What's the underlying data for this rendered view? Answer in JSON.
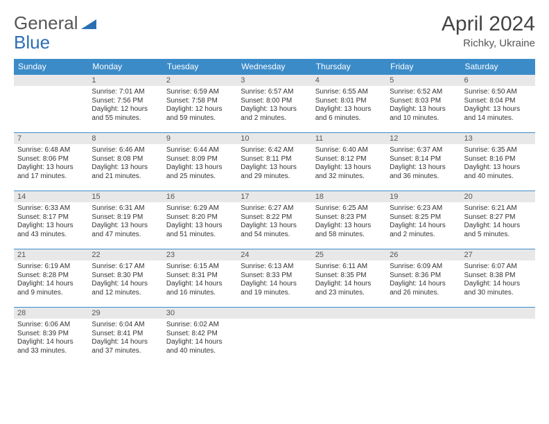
{
  "logo": {
    "text1": "General",
    "text2": "Blue"
  },
  "title": "April 2024",
  "location": "Richky, Ukraine",
  "colors": {
    "header_bg": "#3b8bc9",
    "header_fg": "#ffffff",
    "daynum_bg": "#e8e8e8",
    "border": "#3b8bc9",
    "text": "#333333"
  },
  "weekdays": [
    "Sunday",
    "Monday",
    "Tuesday",
    "Wednesday",
    "Thursday",
    "Friday",
    "Saturday"
  ],
  "weeks": [
    [
      {
        "blank": true
      },
      {
        "num": "1",
        "sunrise": "Sunrise: 7:01 AM",
        "sunset": "Sunset: 7:56 PM",
        "daylight": "Daylight: 12 hours and 55 minutes."
      },
      {
        "num": "2",
        "sunrise": "Sunrise: 6:59 AM",
        "sunset": "Sunset: 7:58 PM",
        "daylight": "Daylight: 12 hours and 59 minutes."
      },
      {
        "num": "3",
        "sunrise": "Sunrise: 6:57 AM",
        "sunset": "Sunset: 8:00 PM",
        "daylight": "Daylight: 13 hours and 2 minutes."
      },
      {
        "num": "4",
        "sunrise": "Sunrise: 6:55 AM",
        "sunset": "Sunset: 8:01 PM",
        "daylight": "Daylight: 13 hours and 6 minutes."
      },
      {
        "num": "5",
        "sunrise": "Sunrise: 6:52 AM",
        "sunset": "Sunset: 8:03 PM",
        "daylight": "Daylight: 13 hours and 10 minutes."
      },
      {
        "num": "6",
        "sunrise": "Sunrise: 6:50 AM",
        "sunset": "Sunset: 8:04 PM",
        "daylight": "Daylight: 13 hours and 14 minutes."
      }
    ],
    [
      {
        "num": "7",
        "sunrise": "Sunrise: 6:48 AM",
        "sunset": "Sunset: 8:06 PM",
        "daylight": "Daylight: 13 hours and 17 minutes."
      },
      {
        "num": "8",
        "sunrise": "Sunrise: 6:46 AM",
        "sunset": "Sunset: 8:08 PM",
        "daylight": "Daylight: 13 hours and 21 minutes."
      },
      {
        "num": "9",
        "sunrise": "Sunrise: 6:44 AM",
        "sunset": "Sunset: 8:09 PM",
        "daylight": "Daylight: 13 hours and 25 minutes."
      },
      {
        "num": "10",
        "sunrise": "Sunrise: 6:42 AM",
        "sunset": "Sunset: 8:11 PM",
        "daylight": "Daylight: 13 hours and 29 minutes."
      },
      {
        "num": "11",
        "sunrise": "Sunrise: 6:40 AM",
        "sunset": "Sunset: 8:12 PM",
        "daylight": "Daylight: 13 hours and 32 minutes."
      },
      {
        "num": "12",
        "sunrise": "Sunrise: 6:37 AM",
        "sunset": "Sunset: 8:14 PM",
        "daylight": "Daylight: 13 hours and 36 minutes."
      },
      {
        "num": "13",
        "sunrise": "Sunrise: 6:35 AM",
        "sunset": "Sunset: 8:16 PM",
        "daylight": "Daylight: 13 hours and 40 minutes."
      }
    ],
    [
      {
        "num": "14",
        "sunrise": "Sunrise: 6:33 AM",
        "sunset": "Sunset: 8:17 PM",
        "daylight": "Daylight: 13 hours and 43 minutes."
      },
      {
        "num": "15",
        "sunrise": "Sunrise: 6:31 AM",
        "sunset": "Sunset: 8:19 PM",
        "daylight": "Daylight: 13 hours and 47 minutes."
      },
      {
        "num": "16",
        "sunrise": "Sunrise: 6:29 AM",
        "sunset": "Sunset: 8:20 PM",
        "daylight": "Daylight: 13 hours and 51 minutes."
      },
      {
        "num": "17",
        "sunrise": "Sunrise: 6:27 AM",
        "sunset": "Sunset: 8:22 PM",
        "daylight": "Daylight: 13 hours and 54 minutes."
      },
      {
        "num": "18",
        "sunrise": "Sunrise: 6:25 AM",
        "sunset": "Sunset: 8:23 PM",
        "daylight": "Daylight: 13 hours and 58 minutes."
      },
      {
        "num": "19",
        "sunrise": "Sunrise: 6:23 AM",
        "sunset": "Sunset: 8:25 PM",
        "daylight": "Daylight: 14 hours and 2 minutes."
      },
      {
        "num": "20",
        "sunrise": "Sunrise: 6:21 AM",
        "sunset": "Sunset: 8:27 PM",
        "daylight": "Daylight: 14 hours and 5 minutes."
      }
    ],
    [
      {
        "num": "21",
        "sunrise": "Sunrise: 6:19 AM",
        "sunset": "Sunset: 8:28 PM",
        "daylight": "Daylight: 14 hours and 9 minutes."
      },
      {
        "num": "22",
        "sunrise": "Sunrise: 6:17 AM",
        "sunset": "Sunset: 8:30 PM",
        "daylight": "Daylight: 14 hours and 12 minutes."
      },
      {
        "num": "23",
        "sunrise": "Sunrise: 6:15 AM",
        "sunset": "Sunset: 8:31 PM",
        "daylight": "Daylight: 14 hours and 16 minutes."
      },
      {
        "num": "24",
        "sunrise": "Sunrise: 6:13 AM",
        "sunset": "Sunset: 8:33 PM",
        "daylight": "Daylight: 14 hours and 19 minutes."
      },
      {
        "num": "25",
        "sunrise": "Sunrise: 6:11 AM",
        "sunset": "Sunset: 8:35 PM",
        "daylight": "Daylight: 14 hours and 23 minutes."
      },
      {
        "num": "26",
        "sunrise": "Sunrise: 6:09 AM",
        "sunset": "Sunset: 8:36 PM",
        "daylight": "Daylight: 14 hours and 26 minutes."
      },
      {
        "num": "27",
        "sunrise": "Sunrise: 6:07 AM",
        "sunset": "Sunset: 8:38 PM",
        "daylight": "Daylight: 14 hours and 30 minutes."
      }
    ],
    [
      {
        "num": "28",
        "sunrise": "Sunrise: 6:06 AM",
        "sunset": "Sunset: 8:39 PM",
        "daylight": "Daylight: 14 hours and 33 minutes."
      },
      {
        "num": "29",
        "sunrise": "Sunrise: 6:04 AM",
        "sunset": "Sunset: 8:41 PM",
        "daylight": "Daylight: 14 hours and 37 minutes."
      },
      {
        "num": "30",
        "sunrise": "Sunrise: 6:02 AM",
        "sunset": "Sunset: 8:42 PM",
        "daylight": "Daylight: 14 hours and 40 minutes."
      },
      {
        "blank": true
      },
      {
        "blank": true
      },
      {
        "blank": true
      },
      {
        "blank": true
      }
    ]
  ]
}
